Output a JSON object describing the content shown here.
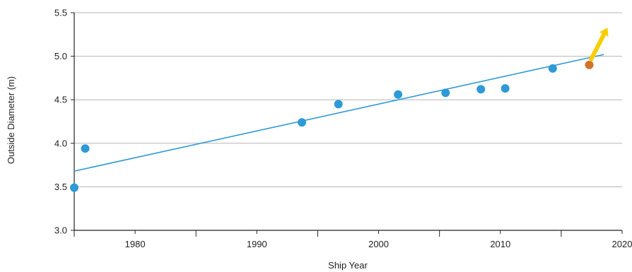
{
  "chart_data": {
    "type": "scatter",
    "title": "",
    "xlabel": "Ship Year",
    "ylabel": "Outside Diameter (m)",
    "xlim": [
      1975,
      2020
    ],
    "ylim": [
      3.0,
      5.5
    ],
    "x_ticks_major": [
      1980,
      1990,
      2000,
      2010,
      2020
    ],
    "x_ticks_minor": [
      1975,
      1985,
      1995,
      2005,
      2015
    ],
    "y_ticks": [
      "3.0",
      "3.5",
      "4.0",
      "4.5",
      "5.0",
      "5.5"
    ],
    "grid": "horizontal",
    "series": [
      {
        "color": "#2e9ad6",
        "points": [
          {
            "x": 1975.0,
            "y": 3.49
          },
          {
            "x": 1975.9,
            "y": 3.94
          },
          {
            "x": 1993.7,
            "y": 4.24
          },
          {
            "x": 1996.7,
            "y": 4.45
          },
          {
            "x": 2001.6,
            "y": 4.56
          },
          {
            "x": 2005.5,
            "y": 4.58
          },
          {
            "x": 2008.4,
            "y": 4.62
          },
          {
            "x": 2010.4,
            "y": 4.63
          },
          {
            "x": 2014.3,
            "y": 4.86
          }
        ]
      },
      {
        "color": "#d2732a",
        "points": [
          {
            "x": 2017.3,
            "y": 4.9
          }
        ]
      }
    ],
    "trendline": {
      "color": "#2e9ad6",
      "from": {
        "x": 1975.0,
        "y": 3.68
      },
      "to": {
        "x": 2018.5,
        "y": 5.02
      }
    },
    "arrow": {
      "color": "#f5cf00",
      "from": {
        "x": 2017.4,
        "y": 4.95
      },
      "to": {
        "x": 2018.8,
        "y": 5.33
      }
    }
  }
}
